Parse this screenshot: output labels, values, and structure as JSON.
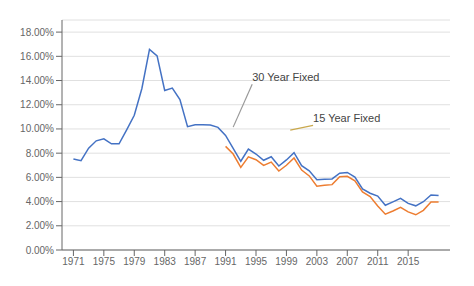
{
  "chart_data": {
    "type": "line",
    "title": "",
    "x": [
      1971,
      1972,
      1973,
      1974,
      1975,
      1976,
      1977,
      1978,
      1979,
      1980,
      1981,
      1982,
      1983,
      1984,
      1985,
      1986,
      1987,
      1988,
      1989,
      1990,
      1991,
      1992,
      1993,
      1994,
      1995,
      1996,
      1997,
      1998,
      1999,
      2000,
      2001,
      2002,
      2003,
      2004,
      2005,
      2006,
      2007,
      2008,
      2009,
      2010,
      2011,
      2012,
      2013,
      2014,
      2015,
      2016,
      2017,
      2018,
      2019
    ],
    "series": [
      {
        "color": "#4472C4",
        "values": [
          0.0752,
          0.0738,
          0.0841,
          0.0902,
          0.0919,
          0.0877,
          0.0877,
          0.0993,
          0.1113,
          0.1334,
          0.1657,
          0.1604,
          0.1318,
          0.1337,
          0.1243,
          0.1019,
          0.1034,
          0.1034,
          0.1032,
          0.1013,
          0.0946,
          0.0839,
          0.0733,
          0.0834,
          0.0793,
          0.0741,
          0.077,
          0.0694,
          0.0744,
          0.0804,
          0.0697,
          0.0654,
          0.058,
          0.0584,
          0.0587,
          0.0634,
          0.0641,
          0.0603,
          0.0504,
          0.0469,
          0.0445,
          0.037,
          0.0398,
          0.0426,
          0.0385,
          0.0365,
          0.0399,
          0.0454,
          0.045
        ]
      },
      {
        "color": "#ED7D31",
        "values": [
          null,
          null,
          null,
          null,
          null,
          null,
          null,
          null,
          null,
          null,
          null,
          null,
          null,
          null,
          null,
          null,
          null,
          null,
          null,
          null,
          0.0856,
          0.0793,
          0.0683,
          0.077,
          0.0746,
          0.0699,
          0.0726,
          0.0652,
          0.07,
          0.076,
          0.066,
          0.0612,
          0.0527,
          0.0534,
          0.054,
          0.0606,
          0.0609,
          0.0571,
          0.0479,
          0.0441,
          0.0364,
          0.0296,
          0.0322,
          0.0352,
          0.0315,
          0.0291,
          0.0328,
          0.0397,
          0.0397
        ]
      }
    ],
    "xlim": [
      1969.5,
      2020.5
    ],
    "xticks": [
      1971,
      1975,
      1979,
      1983,
      1987,
      1991,
      1995,
      1999,
      2003,
      2007,
      2011,
      2015
    ],
    "ylim": [
      0.0,
      0.19
    ],
    "yticks": [
      {
        "value": 0.0,
        "label": "0.00%"
      },
      {
        "value": 0.02,
        "label": "2.00%"
      },
      {
        "value": 0.04,
        "label": "4.00%"
      },
      {
        "value": 0.06,
        "label": "6.00%"
      },
      {
        "value": 0.08,
        "label": "8.00%"
      },
      {
        "value": 0.1,
        "label": "10.00%"
      },
      {
        "value": 0.12,
        "label": "12.00%"
      },
      {
        "value": 0.14,
        "label": "14.00%"
      },
      {
        "value": 0.16,
        "label": "16.00%"
      },
      {
        "value": 0.18,
        "label": "18.00%"
      }
    ],
    "grid": "y",
    "annotations": [
      {
        "text": "30 Year Fixed",
        "x": 1992.0,
        "y": 0.1015,
        "text_x": 1994.5,
        "text_y": 0.137,
        "color": "#999999"
      },
      {
        "text": "15 Year Fixed",
        "x": 1999.5,
        "y": 0.099,
        "text_x": 2002.5,
        "text_y": 0.103,
        "color": "#C9A84C"
      }
    ]
  }
}
